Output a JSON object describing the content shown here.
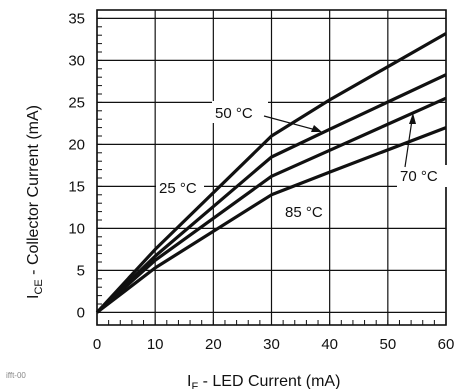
{
  "chart_data": {
    "type": "line",
    "xlabel": {
      "main": "I",
      "sub": "F",
      "rest": " - LED Current (mA)"
    },
    "ylabel": {
      "main": "I",
      "sub": "CE",
      "rest": " - Collector Current (mA)"
    },
    "xlim": [
      0,
      60
    ],
    "ylim": [
      -1.5,
      36
    ],
    "xticks": [
      0,
      10,
      20,
      30,
      40,
      50,
      60
    ],
    "yticks": [
      0,
      5,
      10,
      15,
      20,
      25,
      30,
      35
    ],
    "grid": true,
    "series": [
      {
        "name": "25 °C",
        "x": [
          0,
          10,
          30,
          40,
          60
        ],
        "y": [
          0,
          7.5,
          21.0,
          25.3,
          33.2
        ]
      },
      {
        "name": "50 °C",
        "x": [
          0,
          10,
          30,
          40,
          60
        ],
        "y": [
          0,
          6.7,
          18.5,
          21.8,
          28.3
        ]
      },
      {
        "name": "70 °C",
        "x": [
          0,
          10,
          30,
          40,
          60
        ],
        "y": [
          0,
          6.2,
          16.2,
          19.3,
          25.5
        ]
      },
      {
        "name": "85 °C",
        "x": [
          0,
          10,
          30,
          40,
          60
        ],
        "y": [
          0,
          5.3,
          14.0,
          16.7,
          22.0
        ]
      }
    ],
    "annotations": [
      {
        "text": "50 °C",
        "series": "50 °C"
      },
      {
        "text": "25 °C",
        "series": "25 °C"
      },
      {
        "text": "70 °C",
        "series": "70 °C"
      },
      {
        "text": "85 °C",
        "series": "85 °C"
      }
    ]
  },
  "footnote": "ifft-00"
}
